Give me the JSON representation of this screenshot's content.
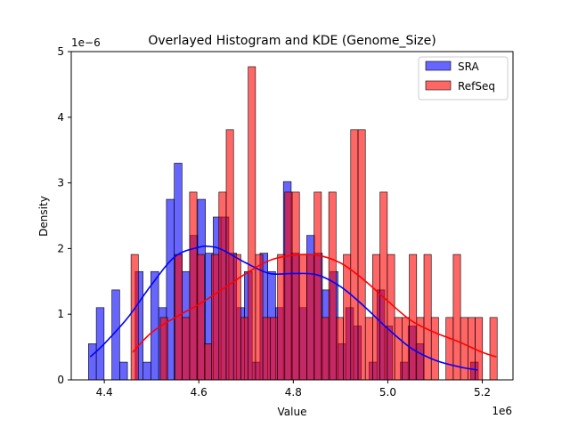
{
  "chart_data": {
    "type": "bar",
    "title": "Overlayed Histogram and KDE (Genome_Size)",
    "xlabel": "Value",
    "ylabel": "Density",
    "x_offset_label": "1e6",
    "y_offset_label": "1e−6",
    "xlim": [
      4.33,
      5.265
    ],
    "ylim": [
      0,
      5
    ],
    "x_ticks": [
      4.4,
      4.6,
      4.8,
      5.0,
      5.2
    ],
    "x_tick_labels": [
      "4.4",
      "4.6",
      "4.8",
      "5.0",
      "5.2"
    ],
    "y_ticks": [
      0,
      1,
      2,
      3,
      4,
      5
    ],
    "y_tick_labels": [
      "0",
      "1",
      "2",
      "3",
      "4",
      "5"
    ],
    "grid": false,
    "legend_position": "top-right",
    "series": [
      {
        "name": "SRA",
        "color": "#0000ff",
        "bin_start": 4.3665,
        "bin_width": 0.0165,
        "values": [
          0.55,
          1.1,
          0,
          1.37,
          0.27,
          0,
          1.65,
          0.27,
          1.65,
          1.1,
          2.75,
          3.3,
          1.65,
          2.2,
          2.75,
          1.93,
          2.48,
          2.48,
          1.93,
          1.1,
          1.65,
          0.27,
          1.93,
          1.65,
          1.1,
          3.02,
          1.93,
          1.1,
          2.2,
          1.93,
          1.37,
          1.65,
          0.55,
          1.1,
          0.82,
          0,
          0.27,
          1.37,
          0.82,
          0,
          0.27,
          0.82,
          0.55,
          0,
          0,
          0,
          0,
          0,
          0,
          0.27
        ],
        "kde": {
          "x": [
            4.37,
            4.4,
            4.45,
            4.5,
            4.55,
            4.6,
            4.625,
            4.65,
            4.7,
            4.75,
            4.8,
            4.85,
            4.9,
            4.95,
            5.0,
            5.05,
            5.1,
            5.15,
            5.19
          ],
          "y": [
            0.35,
            0.55,
            0.95,
            1.45,
            1.88,
            2.02,
            2.03,
            1.98,
            1.78,
            1.62,
            1.62,
            1.6,
            1.42,
            1.12,
            0.78,
            0.48,
            0.3,
            0.2,
            0.15
          ]
        }
      },
      {
        "name": "RefSeq",
        "color": "#ff0000",
        "bin_start": 4.4565,
        "bin_width": 0.0155,
        "values": [
          1.91,
          0,
          0,
          0,
          0.95,
          0,
          1.91,
          0.95,
          2.86,
          1.91,
          0.55,
          1.91,
          2.86,
          3.81,
          1.91,
          0.95,
          4.77,
          1.91,
          0.95,
          0.95,
          1.91,
          2.86,
          2.86,
          1.91,
          1.91,
          2.86,
          0.95,
          2.86,
          0.95,
          1.91,
          3.81,
          3.81,
          0.95,
          1.91,
          2.86,
          1.91,
          0.95,
          0.95,
          1.91,
          0.95,
          1.91,
          0.95,
          0,
          0.95,
          1.91,
          0.95,
          0.95,
          0.95,
          0,
          0.95
        ],
        "kde": {
          "x": [
            4.46,
            4.5,
            4.55,
            4.6,
            4.65,
            4.7,
            4.75,
            4.8,
            4.85,
            4.9,
            4.95,
            5.0,
            5.05,
            5.1,
            5.15,
            5.2,
            5.23
          ],
          "y": [
            0.42,
            0.72,
            0.95,
            1.15,
            1.38,
            1.62,
            1.82,
            1.9,
            1.9,
            1.78,
            1.52,
            1.2,
            0.9,
            0.72,
            0.58,
            0.42,
            0.35
          ]
        }
      }
    ]
  }
}
